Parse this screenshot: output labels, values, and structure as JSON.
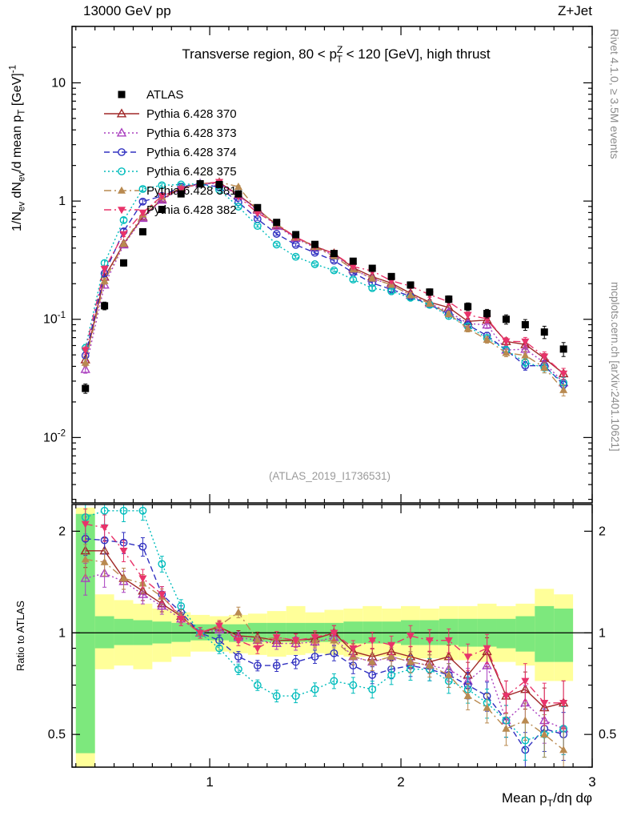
{
  "page": {
    "header_left": "13000 GeV pp",
    "header_right": "Z+Jet",
    "right_label_top": "Rivet 4.1.0, ≥ 3.5M events",
    "right_label_bottom": "mcplots.cern.ch [arXiv:2401.10621]",
    "watermark": "(ATLAS_2019_I1736531)"
  },
  "chart_data": {
    "type": "line",
    "title": "Transverse region, 80 < pT^Z < 120 [GeV], high thrust",
    "xlabel": "Mean pT/dη dφ",
    "ylabel": "1/Nev dNev/d mean pT [GeV]^-1",
    "ylabel_ratio": "Ratio to ATLAS",
    "labels": {
      "title_segments": [
        {
          "t": "Transverse region, 80 < p"
        },
        {
          "t": "Z",
          "sup": true
        },
        {
          "t": "T",
          "sub": true,
          "dx": -8
        },
        {
          "t": " < 120 [GeV], high thrust"
        }
      ],
      "xlabel_segments": [
        {
          "t": "Mean p"
        },
        {
          "t": "T",
          "sub": true
        },
        {
          "t": "/dη dφ"
        }
      ],
      "ylabel_main_segments": [
        {
          "t": "1/N"
        },
        {
          "t": "ev",
          "sub": true
        },
        {
          "t": " dN"
        },
        {
          "t": "ev",
          "sub": true
        },
        {
          "t": "/d mean p"
        },
        {
          "t": "T",
          "sub": true
        },
        {
          "t": " [GeV]"
        },
        {
          "t": "-1",
          "sup": true
        }
      ],
      "ylabel_ratio": "Ratio to ATLAS"
    },
    "xlim": [
      0.28,
      3.0
    ],
    "ylim_main": [
      0.0028,
      30
    ],
    "ylim_ratio": [
      0.4,
      2.4
    ],
    "x_major_ticks": [
      1,
      2,
      3
    ],
    "ratio_major_ticks": [
      0.5,
      1,
      2
    ],
    "ratio_minor_ticks": [
      0.4,
      0.6,
      0.7,
      0.8,
      0.9
    ],
    "grid": false,
    "legend_position": "top-left",
    "band_colors": {
      "yellow": "#ffff99",
      "green": "#7de87d"
    },
    "x": [
      0.35,
      0.45,
      0.55,
      0.65,
      0.75,
      0.85,
      0.95,
      1.05,
      1.15,
      1.25,
      1.35,
      1.45,
      1.55,
      1.65,
      1.75,
      1.85,
      1.95,
      2.05,
      2.15,
      2.25,
      2.35,
      2.45,
      2.55,
      2.65,
      2.75,
      2.85
    ],
    "rel_err": [
      0.06,
      0.05,
      0.04,
      0.035,
      0.03,
      0.025,
      0.02,
      0.02,
      0.02,
      0.02,
      0.022,
      0.025,
      0.025,
      0.028,
      0.03,
      0.032,
      0.035,
      0.04,
      0.042,
      0.045,
      0.05,
      0.055,
      0.06,
      0.07,
      0.08,
      0.09
    ],
    "atlas": {
      "name": "ATLAS",
      "marker": "square-filled",
      "color": "#000000",
      "line": "none",
      "values": [
        0.026,
        0.13,
        0.3,
        0.55,
        0.85,
        1.15,
        1.4,
        1.38,
        1.15,
        0.88,
        0.66,
        0.52,
        0.43,
        0.36,
        0.31,
        0.27,
        0.23,
        0.195,
        0.17,
        0.148,
        0.128,
        0.112,
        0.1,
        0.09,
        0.078,
        0.056
      ]
    },
    "series": [
      {
        "name": "Pythia 6.428 370",
        "marker": "triangle-open",
        "color": "#a02828",
        "line": "solid",
        "ratio": [
          1.75,
          1.75,
          1.45,
          1.33,
          1.22,
          1.12,
          1.0,
          1.04,
          0.98,
          0.97,
          0.95,
          0.95,
          0.96,
          1.0,
          0.88,
          0.85,
          0.88,
          0.85,
          0.82,
          0.85,
          0.75,
          0.88,
          0.65,
          0.68,
          0.6,
          0.62
        ]
      },
      {
        "name": "Pythia 6.428 373",
        "marker": "triangle-open",
        "color": "#aa3fbf",
        "line": "dotted",
        "ratio": [
          1.45,
          1.5,
          1.42,
          1.3,
          1.2,
          1.1,
          1.0,
          1.02,
          0.97,
          0.95,
          0.93,
          0.93,
          0.94,
          0.97,
          0.85,
          0.82,
          0.85,
          0.82,
          0.8,
          0.78,
          0.72,
          0.8,
          0.55,
          0.62,
          0.55,
          0.52
        ]
      },
      {
        "name": "Pythia 6.428 374",
        "marker": "circle-open",
        "color": "#3030c0",
        "line": "dashed",
        "ratio": [
          1.9,
          1.88,
          1.85,
          1.8,
          1.3,
          1.15,
          1.0,
          0.95,
          0.85,
          0.8,
          0.8,
          0.82,
          0.85,
          0.87,
          0.8,
          0.75,
          0.78,
          0.8,
          0.78,
          0.75,
          0.7,
          0.65,
          0.55,
          0.45,
          0.52,
          0.5
        ]
      },
      {
        "name": "Pythia 6.428 375",
        "marker": "circle-open",
        "color": "#00bcbc",
        "line": "dotted",
        "ratio": [
          2.2,
          2.3,
          2.3,
          2.3,
          1.6,
          1.2,
          1.0,
          0.9,
          0.78,
          0.7,
          0.65,
          0.65,
          0.68,
          0.72,
          0.7,
          0.68,
          0.75,
          0.78,
          0.78,
          0.72,
          0.68,
          0.62,
          0.55,
          0.48,
          0.5,
          0.52
        ]
      },
      {
        "name": "Pythia 6.428 381",
        "marker": "triangle-filled",
        "color": "#b98a50",
        "line": "dashdot",
        "ratio": [
          1.65,
          1.62,
          1.45,
          1.4,
          1.28,
          1.12,
          1.0,
          1.05,
          1.15,
          0.95,
          0.97,
          0.95,
          0.95,
          0.95,
          0.85,
          0.82,
          0.85,
          0.82,
          0.8,
          0.75,
          0.65,
          0.6,
          0.52,
          0.55,
          0.5,
          0.45
        ]
      },
      {
        "name": "Pythia 6.428 382",
        "marker": "triangle-down-filled",
        "color": "#e8336a",
        "line": "dashdot",
        "ratio": [
          2.1,
          2.05,
          1.75,
          1.45,
          1.3,
          1.1,
          1.0,
          1.05,
          0.95,
          0.9,
          0.97,
          0.95,
          0.97,
          1.0,
          0.9,
          0.95,
          0.92,
          0.98,
          0.95,
          0.95,
          0.85,
          0.9,
          0.65,
          0.72,
          0.62,
          0.62
        ]
      }
    ],
    "bands": {
      "yellow_lo": [
        0.4,
        0.78,
        0.8,
        0.78,
        0.82,
        0.85,
        0.88,
        0.88,
        0.87,
        0.86,
        0.85,
        0.86,
        0.87,
        0.86,
        0.85,
        0.85,
        0.85,
        0.84,
        0.84,
        0.83,
        0.83,
        0.82,
        0.82,
        0.8,
        0.72,
        0.72
      ],
      "yellow_hi": [
        2.35,
        1.3,
        1.25,
        1.22,
        1.18,
        1.15,
        1.13,
        1.12,
        1.13,
        1.14,
        1.16,
        1.2,
        1.15,
        1.17,
        1.18,
        1.2,
        1.18,
        1.2,
        1.18,
        1.2,
        1.2,
        1.22,
        1.2,
        1.22,
        1.35,
        1.3
      ],
      "green_lo": [
        0.44,
        0.9,
        0.92,
        0.92,
        0.93,
        0.94,
        0.95,
        0.95,
        0.94,
        0.94,
        0.94,
        0.94,
        0.94,
        0.94,
        0.93,
        0.93,
        0.93,
        0.92,
        0.92,
        0.92,
        0.91,
        0.91,
        0.9,
        0.88,
        0.82,
        0.82
      ],
      "green_hi": [
        2.25,
        1.12,
        1.1,
        1.09,
        1.08,
        1.07,
        1.06,
        1.06,
        1.06,
        1.07,
        1.07,
        1.07,
        1.07,
        1.07,
        1.08,
        1.08,
        1.08,
        1.09,
        1.09,
        1.1,
        1.1,
        1.1,
        1.1,
        1.12,
        1.2,
        1.18
      ]
    }
  }
}
